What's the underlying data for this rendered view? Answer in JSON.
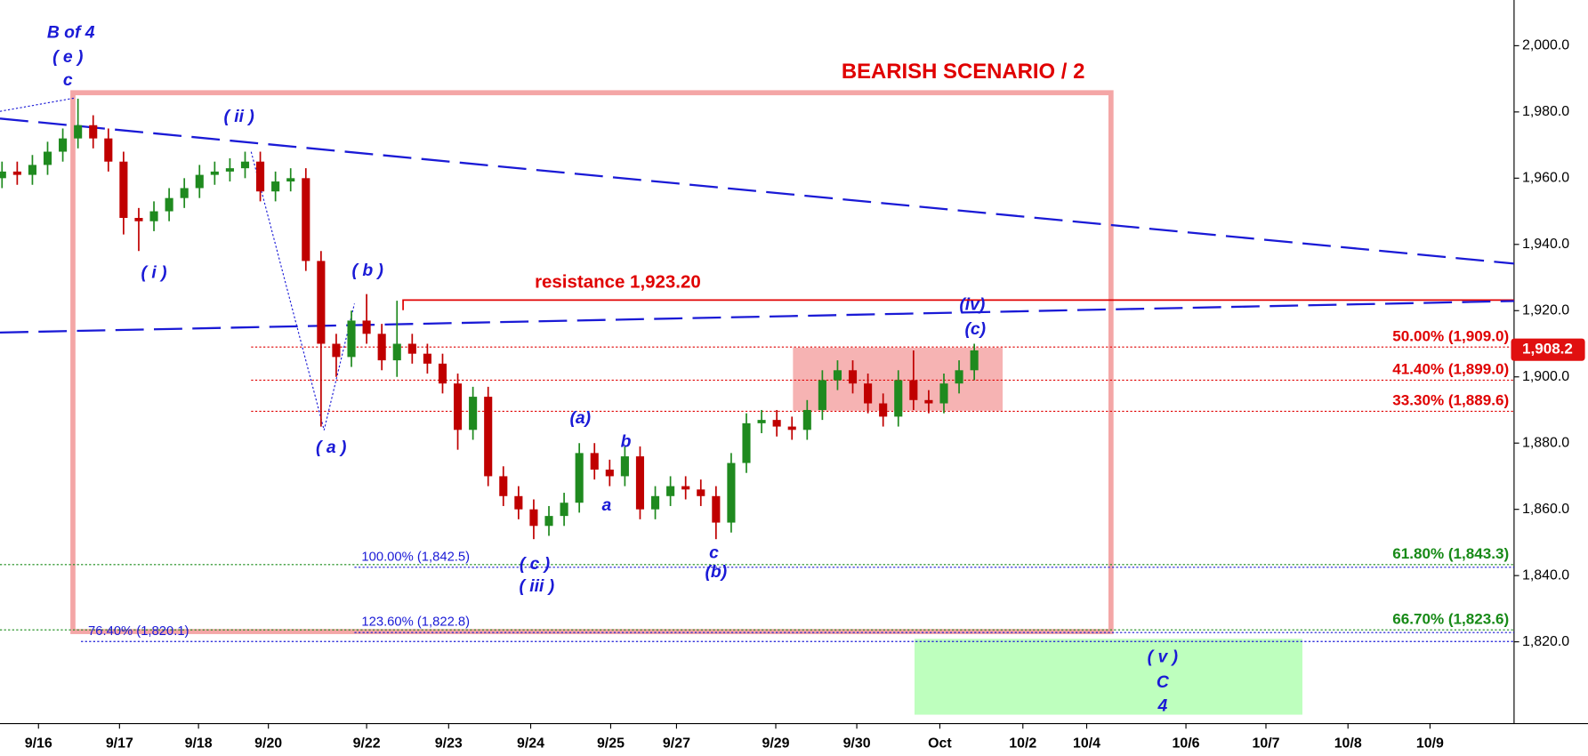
{
  "chart_data": {
    "type": "candlestick",
    "title": "BEARISH SCENARIO / 2",
    "xlim": [
      0,
      149.5
    ],
    "ylim": [
      1795.3,
      2013.8
    ],
    "yticks": [
      {
        "value": 1820,
        "label": "1,820.0"
      },
      {
        "value": 1840,
        "label": "1,840.0"
      },
      {
        "value": 1860,
        "label": "1,860.0"
      },
      {
        "value": 1880,
        "label": "1,880.0"
      },
      {
        "value": 1900,
        "label": "1,900.0"
      },
      {
        "value": 1920,
        "label": "1,920.0"
      },
      {
        "value": 1940,
        "label": "1,940.0"
      },
      {
        "value": 1960,
        "label": "1,960.0"
      },
      {
        "value": 1980,
        "label": "1,980.0"
      },
      {
        "value": 2000,
        "label": "2,000.0"
      }
    ],
    "xticks": [
      {
        "value": 3.8,
        "label": "9/16"
      },
      {
        "value": 11.8,
        "label": "9/17"
      },
      {
        "value": 19.6,
        "label": "9/18"
      },
      {
        "value": 26.5,
        "label": "9/20"
      },
      {
        "value": 36.2,
        "label": "9/22"
      },
      {
        "value": 44.3,
        "label": "9/23"
      },
      {
        "value": 52.4,
        "label": "9/24"
      },
      {
        "value": 60.3,
        "label": "9/25"
      },
      {
        "value": 66.8,
        "label": "9/27"
      },
      {
        "value": 76.6,
        "label": "9/29"
      },
      {
        "value": 84.6,
        "label": "9/30"
      },
      {
        "value": 92.8,
        "label": "Oct"
      },
      {
        "value": 101,
        "label": "10/2"
      },
      {
        "value": 107.3,
        "label": "10/4"
      },
      {
        "value": 117.1,
        "label": "10/6"
      },
      {
        "value": 125,
        "label": "10/7"
      },
      {
        "value": 133.1,
        "label": "10/8"
      },
      {
        "value": 141.2,
        "label": "10/9"
      }
    ],
    "up_color": "#1f8a1f",
    "down_color": "#c00000",
    "x": [
      0.2,
      1.7,
      3.2,
      4.7,
      6.2,
      7.7,
      9.2,
      10.7,
      12.2,
      13.7,
      15.2,
      16.7,
      18.2,
      19.7,
      21.2,
      22.7,
      24.2,
      25.7,
      27.2,
      28.7,
      30.2,
      31.7,
      33.2,
      34.7,
      36.2,
      37.7,
      39.2,
      40.7,
      42.2,
      43.7,
      45.2,
      46.7,
      48.2,
      49.7,
      51.2,
      52.7,
      54.2,
      55.7,
      57.2,
      58.7,
      60.2,
      61.7,
      63.2,
      64.7,
      66.2,
      67.7,
      69.2,
      70.7,
      72.2,
      73.7,
      75.2,
      76.7,
      78.2,
      79.7,
      81.2,
      82.7,
      84.2,
      85.7,
      87.2,
      88.7,
      90.2,
      91.7,
      93.2,
      94.7,
      96.2
    ],
    "open": [
      1960,
      1962,
      1961,
      1964,
      1968,
      1972,
      1976,
      1972,
      1965,
      1948,
      1947,
      1950,
      1954,
      1957,
      1961,
      1962,
      1963,
      1965,
      1956,
      1959,
      1960,
      1935,
      1910,
      1906,
      1917,
      1913,
      1905,
      1910,
      1907,
      1904,
      1898,
      1884,
      1894,
      1870,
      1864,
      1860,
      1855,
      1858,
      1862,
      1877,
      1872,
      1870,
      1876,
      1860,
      1864,
      1867,
      1866,
      1864,
      1856,
      1874,
      1886,
      1887,
      1885,
      1884,
      1890,
      1899,
      1902,
      1898,
      1892,
      1888,
      1899,
      1893,
      1892,
      1898,
      1902
    ],
    "high": [
      1965,
      1965,
      1967,
      1971,
      1975,
      1984,
      1979,
      1975,
      1968,
      1951,
      1953,
      1957,
      1960,
      1964,
      1965,
      1966,
      1968,
      1968,
      1962,
      1963,
      1963,
      1938,
      1913,
      1920,
      1925,
      1916,
      1923,
      1913,
      1910,
      1907,
      1901,
      1897,
      1897,
      1873,
      1867,
      1863,
      1861,
      1865,
      1880,
      1880,
      1875,
      1879,
      1879,
      1867,
      1870,
      1870,
      1869,
      1867,
      1877,
      1889,
      1890,
      1890,
      1888,
      1893,
      1902,
      1905,
      1905,
      1901,
      1895,
      1902,
      1908,
      1896,
      1901,
      1905,
      1910
    ],
    "low": [
      1957,
      1958,
      1958,
      1961,
      1965,
      1969,
      1969,
      1962,
      1943,
      1938,
      1944,
      1947,
      1951,
      1954,
      1958,
      1959,
      1960,
      1953,
      1953,
      1956,
      1932,
      1885,
      1900,
      1903,
      1910,
      1902,
      1900,
      1904,
      1901,
      1895,
      1878,
      1881,
      1867,
      1861,
      1857,
      1851,
      1852,
      1855,
      1859,
      1869,
      1867,
      1867,
      1857,
      1857,
      1861,
      1863,
      1861,
      1851,
      1853,
      1871,
      1883,
      1882,
      1881,
      1881,
      1887,
      1896,
      1895,
      1889,
      1885,
      1885,
      1890,
      1889,
      1889,
      1895,
      1899
    ],
    "close": [
      1962,
      1961,
      1964,
      1968,
      1972,
      1976,
      1972,
      1965,
      1948,
      1947,
      1950,
      1954,
      1957,
      1961,
      1962,
      1963,
      1965,
      1956,
      1959,
      1960,
      1935,
      1910,
      1906,
      1917,
      1913,
      1905,
      1910,
      1907,
      1904,
      1898,
      1884,
      1894,
      1870,
      1864,
      1860,
      1855,
      1858,
      1862,
      1877,
      1872,
      1870,
      1876,
      1860,
      1864,
      1867,
      1866,
      1864,
      1856,
      1874,
      1886,
      1887,
      1885,
      1884,
      1890,
      1899,
      1902,
      1898,
      1892,
      1888,
      1899,
      1893,
      1892,
      1898,
      1902,
      1908
    ],
    "last": {
      "value": 1908.2,
      "label": "1,908.2"
    },
    "resistance": {
      "value": 1923.2,
      "label": "resistance 1,923.20"
    },
    "levels": [
      {
        "value": 1909.0,
        "label": "50.00% (1,909.0)",
        "color": "#e00000"
      },
      {
        "value": 1899.0,
        "label": "41.40% (1,899.0)",
        "color": "#e00000"
      },
      {
        "value": 1889.6,
        "label": "33.30% (1,889.6)",
        "color": "#e00000"
      },
      {
        "value": 1843.3,
        "label": "61.80% (1,843.3)",
        "color": "#178a17"
      },
      {
        "value": 1823.6,
        "label": "66.70% (1,823.6)",
        "color": "#178a17"
      },
      {
        "value": 1842.5,
        "label": "100.00% (1,842.5)",
        "color": "#1a1ad6"
      },
      {
        "value": 1822.8,
        "label": "123.60% (1,822.8)",
        "color": "#1a1ad6"
      },
      {
        "value": 1820.1,
        "label": "76.40% (1,820.1)",
        "color": "#1a1ad6"
      }
    ],
    "trendlines": [
      {
        "x": [
          0,
          149.5
        ],
        "y": [
          1978.0,
          1934.2
        ],
        "color": "#1a1ad6"
      },
      {
        "x": [
          0,
          149.5
        ],
        "y": [
          1913.4,
          1922.9
        ],
        "color": "#1a1ad6"
      }
    ],
    "zones": [
      {
        "x": [
          7.2,
          109.7
        ],
        "y": [
          1985.8,
          1823.1
        ],
        "color": "#f4a6a6",
        "fill": false
      },
      {
        "x": [
          78.3,
          99.0
        ],
        "y": [
          1908.8,
          1889.8
        ],
        "color": "#f4a6a6",
        "fill": true
      },
      {
        "x": [
          90.3,
          128.6
        ],
        "y": [
          1820.9,
          1798.0
        ],
        "color": "#b3ffb3",
        "fill": true
      }
    ],
    "annotations": [
      "B of 4",
      "( e )",
      "c",
      "( ii )",
      "( i )",
      "( b )",
      "( a )",
      "(a)",
      "b",
      "a",
      "( c )",
      "( iii )",
      "c",
      "(b)",
      "(iv)",
      "(c)",
      "( v )",
      "C",
      "4"
    ]
  }
}
